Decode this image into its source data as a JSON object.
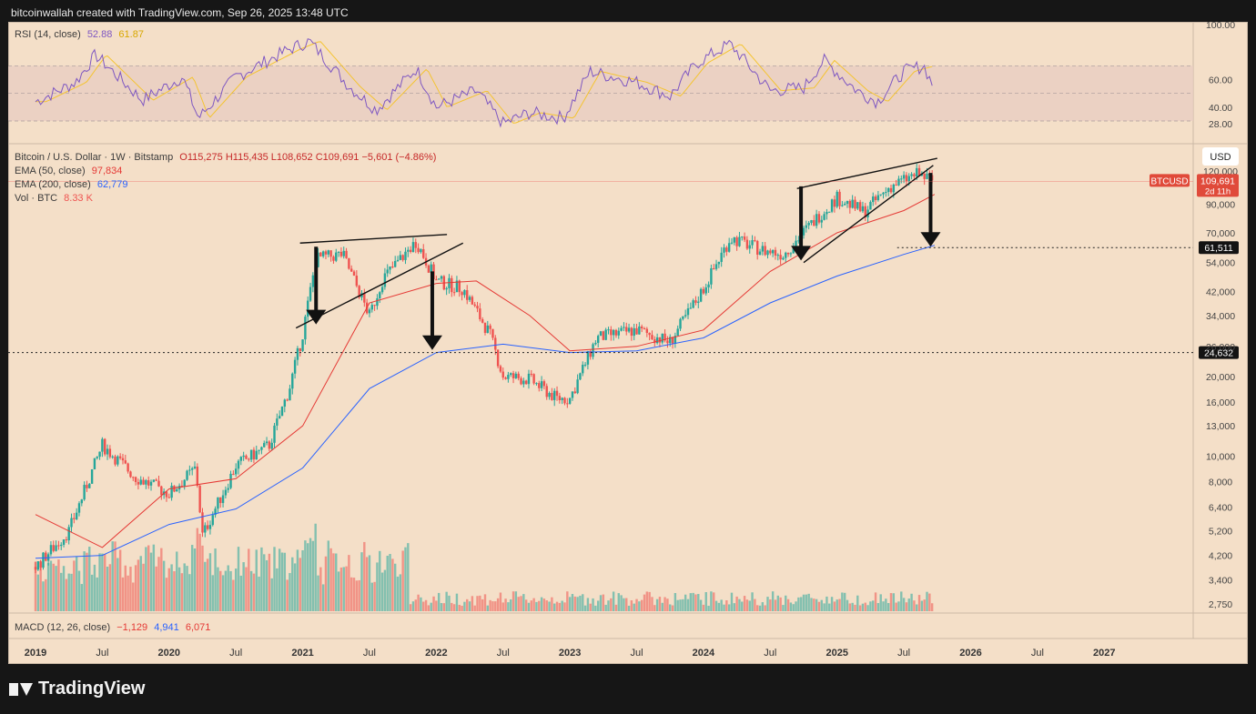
{
  "header": {
    "attribution": "bitcoinwallah created with TradingView.com, Sep 26, 2025 13:48 UTC"
  },
  "rsi_legend": {
    "label": "RSI (14, close)",
    "value1": "52.88",
    "value2": "61.87"
  },
  "price_legend": {
    "symbol": "Bitcoin / U.S. Dollar · 1W · Bitstamp",
    "ohlc": "O115,275  H115,435  L108,652  C109,691  −5,601 (−4.86%)",
    "ema50_label": "EMA (50, close)",
    "ema50_value": "97,834",
    "ema200_label": "EMA (200, close)",
    "ema200_value": "62,779",
    "vol_label": "Vol · BTC",
    "vol_value": "8.33 K"
  },
  "macd_legend": {
    "label": "MACD (12, 26, close)",
    "v1": "−1,129",
    "v2": "4,941",
    "v3": "6,071"
  },
  "footer": {
    "brand": "TradingView"
  },
  "colors": {
    "bg": "#f4dfc8",
    "up": "#26a69a",
    "down": "#ef5350",
    "ema50": "#e53935",
    "ema200": "#2962ff",
    "rsi": "#7e57c2",
    "rsi_ma": "#f4c430"
  },
  "chart_data": {
    "type": "line",
    "title": "Bitcoin / U.S. Dollar · 1W · Bitstamp",
    "currency_label": "USD",
    "x_ticks": [
      "2019",
      "Jul",
      "2020",
      "Jul",
      "2021",
      "Jul",
      "2022",
      "Jul",
      "2023",
      "Jul",
      "2024",
      "Jul",
      "2025",
      "Jul",
      "2026",
      "Jul",
      "2027"
    ],
    "y_ticks": [
      "120,000",
      "90,000",
      "70,000",
      "54,000",
      "42,000",
      "34,000",
      "26,000",
      "20,000",
      "16,000",
      "13,000",
      "10,000",
      "8,000",
      "6,400",
      "5,200",
      "4,200",
      "3,400",
      "2,750"
    ],
    "rsi_ticks": [
      "100.00",
      "60.00",
      "40.00",
      "28.00"
    ],
    "price_tag": {
      "symbol": "BTCUSD",
      "value": "109,691",
      "countdown": "2d 11h"
    },
    "levels": [
      {
        "label": "61,511",
        "value": 61511
      },
      {
        "label": "24,632",
        "value": 24632
      }
    ],
    "y_scale": "log",
    "series": [
      {
        "name": "BTCUSD",
        "x": [
          2019.0,
          2019.25,
          2019.5,
          2019.75,
          2020.0,
          2020.2,
          2020.25,
          2020.5,
          2020.75,
          2020.9,
          2021.0,
          2021.1,
          2021.3,
          2021.5,
          2021.6,
          2021.85,
          2022.0,
          2022.2,
          2022.4,
          2022.5,
          2022.7,
          2022.9,
          2023.0,
          2023.2,
          2023.5,
          2023.75,
          2024.0,
          2024.2,
          2024.45,
          2024.6,
          2024.85,
          2025.0,
          2025.2,
          2025.4,
          2025.6,
          2025.73
        ],
        "values": [
          3800,
          5200,
          11000,
          8300,
          7200,
          9000,
          5000,
          9200,
          11000,
          18000,
          29000,
          56000,
          58000,
          34000,
          47000,
          65000,
          46000,
          43000,
          29000,
          20000,
          19500,
          16500,
          16500,
          28000,
          30000,
          27000,
          43000,
          67000,
          60000,
          58000,
          80000,
          95000,
          84000,
          105000,
          117000,
          109691
        ]
      },
      {
        "name": "EMA (50, close)",
        "x": [
          2019.0,
          2019.5,
          2020.0,
          2020.5,
          2021.0,
          2021.5,
          2022.0,
          2022.3,
          2022.7,
          2023.0,
          2023.5,
          2024.0,
          2024.5,
          2025.0,
          2025.5,
          2025.73
        ],
        "values": [
          6000,
          4500,
          7500,
          8200,
          13000,
          38000,
          45000,
          46000,
          34000,
          25000,
          26000,
          30000,
          50000,
          70000,
          85000,
          97834
        ]
      },
      {
        "name": "EMA (200, close)",
        "x": [
          2019.0,
          2019.5,
          2020.0,
          2020.5,
          2021.0,
          2021.5,
          2022.0,
          2022.5,
          2023.0,
          2023.5,
          2024.0,
          2024.5,
          2025.0,
          2025.5,
          2025.73
        ],
        "values": [
          4100,
          4200,
          5500,
          6300,
          9000,
          18000,
          24632,
          26500,
          24632,
          25000,
          28000,
          38000,
          48000,
          58000,
          62779
        ]
      }
    ]
  }
}
